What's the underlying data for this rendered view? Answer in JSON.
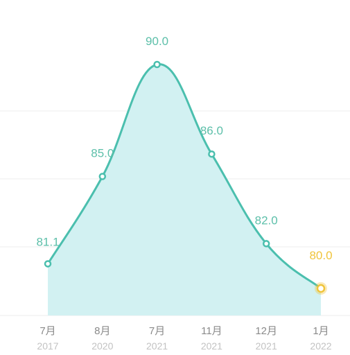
{
  "chart_data": {
    "type": "area",
    "title": "",
    "xlabel": "",
    "ylabel": "",
    "categories": [
      {
        "month": "7月",
        "year": "2017"
      },
      {
        "month": "8月",
        "year": "2020"
      },
      {
        "month": "7月",
        "year": "2021"
      },
      {
        "month": "11月",
        "year": "2021"
      },
      {
        "month": "12月",
        "year": "2021"
      },
      {
        "month": "1月",
        "year": "2022"
      }
    ],
    "series": [
      {
        "values": [
          81.1,
          85.0,
          90.0,
          86.0,
          82.0,
          80.0
        ]
      }
    ],
    "value_labels": [
      "81.1",
      "85.0",
      "90.0",
      "86.0",
      "82.0",
      "80.0"
    ],
    "highlight_index": 5,
    "ylim": [
      78.1,
      91.3
    ],
    "grid": true,
    "colors": {
      "line": "#4bbfae",
      "fill": "#d2f1f2",
      "label": "#5cbfa9",
      "highlight": "#f0c43a",
      "month_text": "#8a8a8a",
      "year_text": "#c2c2c2",
      "grid": "#eeeeee"
    }
  }
}
